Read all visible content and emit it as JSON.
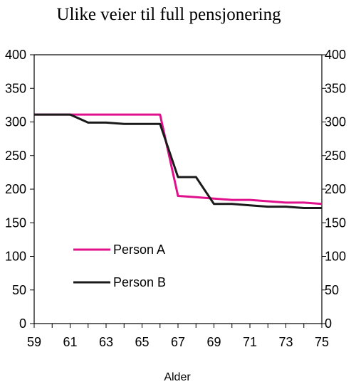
{
  "chart_data": {
    "type": "line",
    "title": "Ulike veier til full pensjonering",
    "xlabel": "Alder",
    "ylabel": "",
    "x": [
      59,
      60,
      61,
      62,
      63,
      64,
      65,
      66,
      67,
      68,
      69,
      70,
      71,
      72,
      73,
      74,
      75
    ],
    "xlim": [
      59,
      75
    ],
    "ylim": [
      0,
      400
    ],
    "x_ticks": [
      "59",
      "61",
      "63",
      "65",
      "67",
      "69",
      "71",
      "73",
      "75"
    ],
    "y_ticks": [
      "0",
      "50",
      "100",
      "150",
      "200",
      "250",
      "300",
      "350",
      "400"
    ],
    "grid": false,
    "legend_position": "inside-left",
    "series": [
      {
        "name": "Person A",
        "color": "#e0108c",
        "values": [
          311,
          311,
          311,
          311,
          311,
          311,
          311,
          311,
          190,
          188,
          186,
          184,
          184,
          182,
          180,
          180,
          178
        ]
      },
      {
        "name": "Person B",
        "color": "#1a1a1a",
        "values": [
          311,
          311,
          311,
          299,
          299,
          297,
          297,
          297,
          218,
          218,
          178,
          178,
          176,
          174,
          174,
          172,
          172
        ]
      }
    ]
  }
}
